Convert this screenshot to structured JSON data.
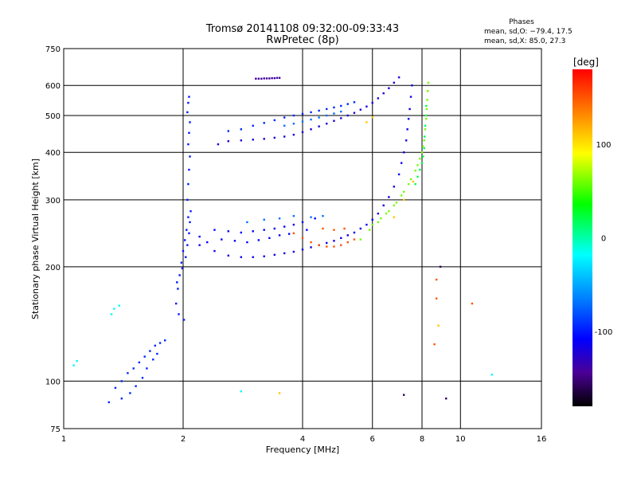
{
  "chart_data": {
    "type": "scatter",
    "title": "Tromsø 20141108 09:32:00-09:33:43",
    "subtitle": "RwPretec (8p)",
    "xlabel": "Frequency [MHz]",
    "ylabel": "Stationary phase Virtual Height [km]",
    "x_scale": "log",
    "y_scale": "log",
    "xlim": [
      1,
      16
    ],
    "ylim": [
      75,
      750
    ],
    "x_ticks": [
      1,
      2,
      4,
      6,
      8,
      10,
      16
    ],
    "y_ticks": [
      75,
      100,
      200,
      300,
      400,
      500,
      600,
      750
    ],
    "grid": true,
    "stats": {
      "heading": "Phases",
      "line_o": "mean, sd,O: −79.4, 17.5",
      "line_x": "mean, sd,X:  85.0, 27.3"
    },
    "colorbar": {
      "label": "[deg]",
      "ticks": [
        100,
        0,
        -100
      ],
      "range": [
        -180,
        180
      ]
    },
    "colors": {
      "grid": "#000000",
      "deep_blue": "#1a2fd0",
      "light_blue": "#1f8ee6",
      "cyan": "#22c6d8",
      "yellow_green": "#c6e81e",
      "orange": "#ee5a1a"
    },
    "series": [
      {
        "phase": -100,
        "points": [
          [
            1.92,
            160
          ],
          [
            1.94,
            175
          ],
          [
            1.96,
            190
          ],
          [
            1.98,
            205
          ],
          [
            2.0,
            220
          ],
          [
            2.02,
            235
          ],
          [
            2.04,
            250
          ],
          [
            2.06,
            270
          ],
          [
            1.95,
            150
          ],
          [
            2.01,
            145
          ],
          [
            1.93,
            182
          ],
          [
            1.99,
            198
          ],
          [
            2.03,
            212
          ],
          [
            2.05,
            228
          ],
          [
            2.07,
            245
          ],
          [
            2.08,
            262
          ],
          [
            2.09,
            280
          ],
          [
            2.05,
            300
          ],
          [
            2.06,
            330
          ],
          [
            2.07,
            360
          ],
          [
            2.08,
            390
          ],
          [
            2.06,
            420
          ],
          [
            2.07,
            450
          ],
          [
            2.08,
            480
          ],
          [
            2.05,
            510
          ],
          [
            2.06,
            540
          ],
          [
            2.07,
            560
          ]
        ]
      },
      {
        "phase": -110,
        "points": [
          [
            2.2,
            240
          ],
          [
            2.4,
            250
          ],
          [
            2.6,
            248
          ],
          [
            2.8,
            246
          ],
          [
            3.0,
            248
          ],
          [
            3.2,
            250
          ],
          [
            3.4,
            252
          ],
          [
            3.6,
            255
          ],
          [
            3.8,
            258
          ],
          [
            4.0,
            262
          ],
          [
            4.3,
            268
          ],
          [
            2.3,
            232
          ],
          [
            2.5,
            236
          ],
          [
            2.7,
            234
          ],
          [
            2.9,
            232
          ],
          [
            3.1,
            235
          ],
          [
            3.3,
            238
          ],
          [
            3.5,
            242
          ],
          [
            3.7,
            244
          ],
          [
            4.1,
            250
          ]
        ]
      },
      {
        "phase": -115,
        "points": [
          [
            2.2,
            228
          ],
          [
            2.4,
            220
          ],
          [
            2.6,
            214
          ],
          [
            2.8,
            212
          ],
          [
            3.0,
            212
          ],
          [
            3.2,
            213
          ],
          [
            3.4,
            215
          ],
          [
            3.6,
            217
          ],
          [
            3.8,
            219
          ],
          [
            4.0,
            222
          ],
          [
            4.2,
            225
          ],
          [
            4.4,
            228
          ],
          [
            4.6,
            231
          ],
          [
            4.8,
            234
          ],
          [
            5.0,
            238
          ],
          [
            5.2,
            242
          ],
          [
            5.4,
            246
          ],
          [
            5.6,
            252
          ],
          [
            5.8,
            258
          ],
          [
            6.0,
            266
          ],
          [
            6.2,
            276
          ],
          [
            6.4,
            290
          ],
          [
            6.6,
            305
          ],
          [
            6.8,
            325
          ],
          [
            7.0,
            350
          ],
          [
            7.1,
            375
          ],
          [
            7.2,
            400
          ],
          [
            7.3,
            430
          ],
          [
            7.35,
            460
          ],
          [
            7.4,
            490
          ],
          [
            7.45,
            520
          ],
          [
            7.5,
            560
          ],
          [
            7.55,
            600
          ]
        ]
      },
      {
        "phase": -120,
        "points": [
          [
            2.45,
            420
          ],
          [
            2.6,
            428
          ],
          [
            2.8,
            430
          ],
          [
            3.0,
            432
          ],
          [
            3.2,
            434
          ],
          [
            3.4,
            437
          ],
          [
            3.6,
            440
          ],
          [
            3.8,
            445
          ],
          [
            4.0,
            452
          ],
          [
            4.2,
            460
          ],
          [
            4.4,
            468
          ],
          [
            4.6,
            476
          ],
          [
            4.8,
            484
          ],
          [
            5.0,
            492
          ],
          [
            5.2,
            500
          ],
          [
            5.4,
            508
          ],
          [
            5.6,
            518
          ],
          [
            5.8,
            528
          ],
          [
            6.0,
            540
          ],
          [
            6.2,
            555
          ],
          [
            6.4,
            572
          ],
          [
            6.6,
            590
          ],
          [
            6.8,
            610
          ],
          [
            7.0,
            630
          ]
        ]
      },
      {
        "phase": -95,
        "points": [
          [
            2.6,
            455
          ],
          [
            2.8,
            460
          ],
          [
            3.0,
            470
          ],
          [
            3.2,
            478
          ],
          [
            3.4,
            486
          ],
          [
            3.6,
            494
          ],
          [
            3.8,
            500
          ],
          [
            4.0,
            505
          ],
          [
            4.2,
            510
          ],
          [
            4.4,
            515
          ],
          [
            4.6,
            520
          ],
          [
            4.8,
            525
          ],
          [
            5.0,
            530
          ],
          [
            5.2,
            536
          ],
          [
            5.4,
            542
          ]
        ]
      },
      {
        "phase": -70,
        "points": [
          [
            3.6,
            470
          ],
          [
            3.8,
            476
          ],
          [
            4.0,
            482
          ],
          [
            4.2,
            488
          ],
          [
            4.4,
            494
          ],
          [
            4.6,
            500
          ],
          [
            4.8,
            506
          ],
          [
            5.0,
            512
          ],
          [
            2.9,
            262
          ],
          [
            3.2,
            266
          ],
          [
            3.5,
            268
          ],
          [
            3.8,
            272
          ],
          [
            4.2,
            270
          ],
          [
            4.5,
            272
          ]
        ]
      },
      {
        "phase": -95,
        "points": [
          [
            1.4,
            100
          ],
          [
            1.45,
            105
          ],
          [
            1.5,
            108
          ],
          [
            1.55,
            112
          ],
          [
            1.6,
            116
          ],
          [
            1.65,
            120
          ],
          [
            1.7,
            124
          ],
          [
            1.75,
            126
          ],
          [
            1.8,
            128
          ],
          [
            1.52,
            97
          ],
          [
            1.58,
            102
          ],
          [
            1.62,
            108
          ],
          [
            1.68,
            114
          ],
          [
            1.72,
            118
          ],
          [
            1.47,
            93
          ],
          [
            1.35,
            96
          ],
          [
            1.4,
            90
          ],
          [
            1.3,
            88
          ]
        ]
      },
      {
        "phase": -140,
        "points": [
          [
            3.05,
            625
          ],
          [
            3.1,
            625
          ],
          [
            3.15,
            625
          ],
          [
            3.2,
            626
          ],
          [
            3.25,
            626
          ],
          [
            3.3,
            626
          ],
          [
            3.35,
            627
          ],
          [
            3.4,
            627
          ],
          [
            3.45,
            628
          ],
          [
            3.5,
            628
          ]
        ]
      },
      {
        "phase": 60,
        "points": [
          [
            6.0,
            258
          ],
          [
            6.3,
            268
          ],
          [
            6.6,
            280
          ],
          [
            6.9,
            295
          ],
          [
            7.2,
            315
          ],
          [
            7.5,
            340
          ],
          [
            7.8,
            370
          ],
          [
            8.0,
            400
          ],
          [
            8.1,
            430
          ],
          [
            8.15,
            460
          ],
          [
            8.2,
            490
          ],
          [
            8.22,
            520
          ],
          [
            8.25,
            550
          ],
          [
            8.27,
            580
          ],
          [
            8.3,
            610
          ],
          [
            5.6,
            236
          ],
          [
            5.9,
            250
          ],
          [
            6.2,
            262
          ],
          [
            6.5,
            276
          ],
          [
            6.8,
            290
          ],
          [
            7.1,
            308
          ],
          [
            7.4,
            330
          ],
          [
            7.7,
            358
          ],
          [
            7.9,
            385
          ],
          [
            8.05,
            415
          ]
        ]
      },
      {
        "phase": 20,
        "points": [
          [
            7.7,
            330
          ],
          [
            7.8,
            345
          ],
          [
            7.9,
            360
          ],
          [
            8.0,
            375
          ],
          [
            8.05,
            390
          ],
          [
            8.1,
            410
          ],
          [
            8.12,
            440
          ],
          [
            8.15,
            470
          ],
          [
            8.18,
            500
          ],
          [
            8.2,
            530
          ]
        ]
      },
      {
        "phase": 150,
        "points": [
          [
            3.8,
            245
          ],
          [
            4.0,
            238
          ],
          [
            4.2,
            232
          ],
          [
            4.4,
            228
          ],
          [
            4.6,
            226
          ],
          [
            4.8,
            226
          ],
          [
            5.0,
            228
          ],
          [
            5.2,
            232
          ],
          [
            5.4,
            236
          ],
          [
            4.5,
            252
          ],
          [
            4.8,
            250
          ],
          [
            5.1,
            252
          ],
          [
            8.7,
            185
          ],
          [
            8.7,
            165
          ],
          [
            8.6,
            125
          ],
          [
            10.7,
            160
          ]
        ]
      },
      {
        "phase": -160,
        "points": [
          [
            9.2,
            90
          ],
          [
            8.9,
            200
          ],
          [
            7.2,
            92
          ]
        ]
      },
      {
        "phase": 110,
        "points": [
          [
            6.8,
            270
          ],
          [
            7.2,
            300
          ],
          [
            7.6,
            335
          ],
          [
            5.8,
            480
          ],
          [
            6.0,
            495
          ],
          [
            8.8,
            140
          ],
          [
            3.5,
            93
          ]
        ]
      },
      {
        "phase": -20,
        "points": [
          [
            1.38,
            158
          ],
          [
            1.34,
            155
          ],
          [
            1.32,
            150
          ],
          [
            1.06,
            110
          ],
          [
            1.08,
            113
          ],
          [
            12.0,
            104
          ],
          [
            2.8,
            94
          ]
        ]
      }
    ]
  }
}
